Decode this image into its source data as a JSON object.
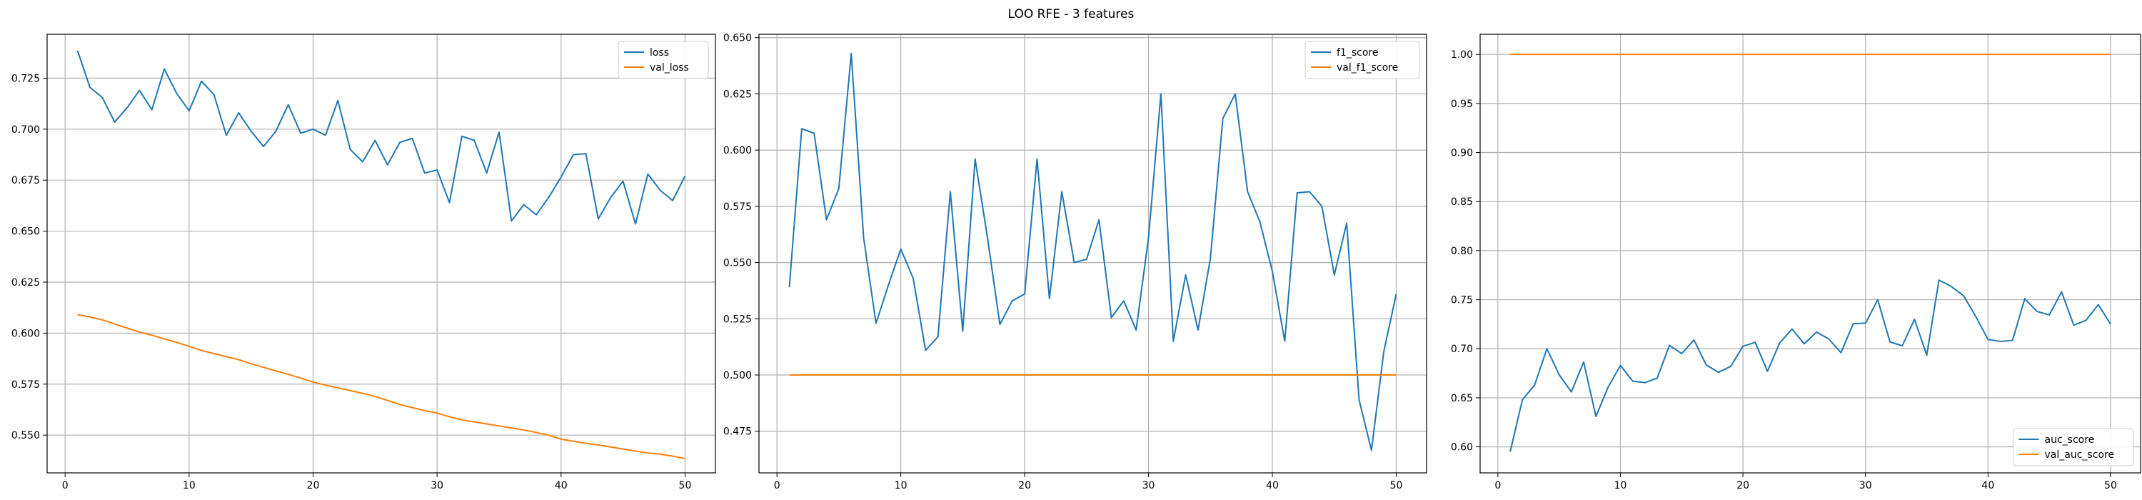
{
  "figure": {
    "title": "LOO RFE - 3 features"
  },
  "chart_data": [
    {
      "type": "line",
      "title": "",
      "xlabel": "",
      "ylabel": "",
      "xlim": [
        -1.45,
        52.45
      ],
      "ylim": [
        0.5315,
        0.7465
      ],
      "xticks": [
        0,
        10,
        20,
        30,
        40,
        50
      ],
      "yticks": [
        0.55,
        0.575,
        0.6,
        0.625,
        0.65,
        0.675,
        0.7,
        0.725
      ],
      "ytick_labels": [
        "0.550",
        "0.575",
        "0.600",
        "0.625",
        "0.650",
        "0.675",
        "0.700",
        "0.725"
      ],
      "grid": true,
      "legend_position": "upper right",
      "x": [
        1,
        2,
        3,
        4,
        5,
        6,
        7,
        8,
        9,
        10,
        11,
        12,
        13,
        14,
        15,
        16,
        17,
        18,
        19,
        20,
        21,
        22,
        23,
        24,
        25,
        26,
        27,
        28,
        29,
        30,
        31,
        32,
        33,
        34,
        35,
        36,
        37,
        38,
        39,
        40,
        41,
        42,
        43,
        44,
        45,
        46,
        47,
        48,
        49,
        50
      ],
      "series": [
        {
          "name": "loss",
          "color": "#1f77b4",
          "values": [
            0.7385,
            0.7205,
            0.7155,
            0.7035,
            0.7105,
            0.719,
            0.7095,
            0.7295,
            0.7175,
            0.709,
            0.7235,
            0.717,
            0.697,
            0.708,
            0.699,
            0.6915,
            0.699,
            0.712,
            0.698,
            0.7,
            0.697,
            0.714,
            0.69,
            0.684,
            0.6945,
            0.6825,
            0.6935,
            0.6955,
            0.6785,
            0.68,
            0.664,
            0.6965,
            0.6945,
            0.6785,
            0.6985,
            0.655,
            0.663,
            0.658,
            0.6665,
            0.6765,
            0.6875,
            0.688,
            0.656,
            0.6665,
            0.6745,
            0.6535,
            0.678,
            0.67,
            0.665,
            0.677
          ]
        },
        {
          "name": "val_loss",
          "color": "#ff7f0e",
          "values": [
            0.609,
            0.608,
            0.6065,
            0.6045,
            0.6025,
            0.6005,
            0.599,
            0.5972,
            0.5955,
            0.5935,
            0.5915,
            0.59,
            0.5885,
            0.587,
            0.585,
            0.5832,
            0.5815,
            0.5798,
            0.578,
            0.576,
            0.5745,
            0.5732,
            0.5718,
            0.5705,
            0.569,
            0.567,
            0.565,
            0.5635,
            0.562,
            0.5608,
            0.559,
            0.5575,
            0.5565,
            0.5555,
            0.5545,
            0.5535,
            0.5525,
            0.5513,
            0.55,
            0.548,
            0.547,
            0.546,
            0.5452,
            0.5442,
            0.5432,
            0.5422,
            0.5412,
            0.5407,
            0.5397,
            0.5385
          ]
        }
      ]
    },
    {
      "type": "line",
      "title": "",
      "xlabel": "",
      "ylabel": "",
      "xlim": [
        -1.45,
        52.45
      ],
      "ylim": [
        0.4565,
        0.6515
      ],
      "xticks": [
        0,
        10,
        20,
        30,
        40,
        50
      ],
      "yticks": [
        0.475,
        0.5,
        0.525,
        0.55,
        0.575,
        0.6,
        0.625,
        0.65
      ],
      "ytick_labels": [
        "0.475",
        "0.500",
        "0.525",
        "0.550",
        "0.575",
        "0.600",
        "0.625",
        "0.650"
      ],
      "grid": true,
      "legend_position": "upper right",
      "x": [
        1,
        2,
        3,
        4,
        5,
        6,
        7,
        8,
        9,
        10,
        11,
        12,
        13,
        14,
        15,
        16,
        17,
        18,
        19,
        20,
        21,
        22,
        23,
        24,
        25,
        26,
        27,
        28,
        29,
        30,
        31,
        32,
        33,
        34,
        35,
        36,
        37,
        38,
        39,
        40,
        41,
        42,
        43,
        44,
        45,
        46,
        47,
        48,
        49,
        50
      ],
      "series": [
        {
          "name": "f1_score",
          "color": "#1f77b4",
          "values": [
            0.539,
            0.6095,
            0.6075,
            0.569,
            0.583,
            0.643,
            0.561,
            0.523,
            0.54,
            0.556,
            0.543,
            0.511,
            0.517,
            0.5815,
            0.5195,
            0.596,
            0.561,
            0.5225,
            0.533,
            0.536,
            0.596,
            0.534,
            0.5815,
            0.55,
            0.5515,
            0.569,
            0.5255,
            0.533,
            0.52,
            0.561,
            0.625,
            0.515,
            0.5445,
            0.52,
            0.552,
            0.614,
            0.625,
            0.5815,
            0.568,
            0.546,
            0.515,
            0.581,
            0.5815,
            0.575,
            0.5445,
            0.5675,
            0.489,
            0.4665,
            0.5105,
            0.536
          ]
        },
        {
          "name": "val_f1_score",
          "color": "#ff7f0e",
          "values": [
            0.5,
            0.5,
            0.5,
            0.5,
            0.5,
            0.5,
            0.5,
            0.5,
            0.5,
            0.5,
            0.5,
            0.5,
            0.5,
            0.5,
            0.5,
            0.5,
            0.5,
            0.5,
            0.5,
            0.5,
            0.5,
            0.5,
            0.5,
            0.5,
            0.5,
            0.5,
            0.5,
            0.5,
            0.5,
            0.5,
            0.5,
            0.5,
            0.5,
            0.5,
            0.5,
            0.5,
            0.5,
            0.5,
            0.5,
            0.5,
            0.5,
            0.5,
            0.5,
            0.5,
            0.5,
            0.5,
            0.5,
            0.5,
            0.5,
            0.5
          ]
        }
      ]
    },
    {
      "type": "line",
      "title": "",
      "xlabel": "",
      "ylabel": "",
      "xlim": [
        -1.45,
        52.45
      ],
      "ylim": [
        0.5735,
        1.0205
      ],
      "xticks": [
        0,
        10,
        20,
        30,
        40,
        50
      ],
      "yticks": [
        0.6,
        0.65,
        0.7,
        0.75,
        0.8,
        0.85,
        0.9,
        0.95,
        1.0
      ],
      "ytick_labels": [
        "0.60",
        "0.65",
        "0.70",
        "0.75",
        "0.80",
        "0.85",
        "0.90",
        "0.95",
        "1.00"
      ],
      "grid": true,
      "legend_position": "lower right",
      "x": [
        1,
        2,
        3,
        4,
        5,
        6,
        7,
        8,
        9,
        10,
        11,
        12,
        13,
        14,
        15,
        16,
        17,
        18,
        19,
        20,
        21,
        22,
        23,
        24,
        25,
        26,
        27,
        28,
        29,
        30,
        31,
        32,
        33,
        34,
        35,
        36,
        37,
        38,
        39,
        40,
        41,
        42,
        43,
        44,
        45,
        46,
        47,
        48,
        49,
        50
      ],
      "series": [
        {
          "name": "auc_score",
          "color": "#1f77b4",
          "values": [
            0.595,
            0.648,
            0.663,
            0.7,
            0.6735,
            0.656,
            0.6865,
            0.631,
            0.661,
            0.683,
            0.667,
            0.6655,
            0.67,
            0.7035,
            0.695,
            0.709,
            0.6835,
            0.676,
            0.682,
            0.7025,
            0.7065,
            0.677,
            0.706,
            0.72,
            0.705,
            0.717,
            0.71,
            0.696,
            0.7255,
            0.726,
            0.75,
            0.707,
            0.703,
            0.73,
            0.6935,
            0.77,
            0.7635,
            0.754,
            0.733,
            0.7095,
            0.7075,
            0.7085,
            0.751,
            0.738,
            0.7345,
            0.758,
            0.724,
            0.729,
            0.745,
            0.725
          ]
        },
        {
          "name": "val_auc_score",
          "color": "#ff7f0e",
          "values": [
            1,
            1,
            1,
            1,
            1,
            1,
            1,
            1,
            1,
            1,
            1,
            1,
            1,
            1,
            1,
            1,
            1,
            1,
            1,
            1,
            1,
            1,
            1,
            1,
            1,
            1,
            1,
            1,
            1,
            1,
            1,
            1,
            1,
            1,
            1,
            1,
            1,
            1,
            1,
            1,
            1,
            1,
            1,
            1,
            1,
            1,
            1,
            1,
            1,
            1
          ]
        }
      ]
    }
  ]
}
